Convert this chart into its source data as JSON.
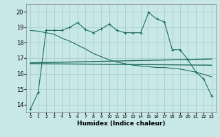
{
  "xlabel": "Humidex (Indice chaleur)",
  "background_color": "#c8e8e8",
  "line_color": "#1a6b5a",
  "xlim": [
    -0.5,
    23.5
  ],
  "ylim": [
    13.5,
    20.5
  ],
  "yticks": [
    14,
    15,
    16,
    17,
    18,
    19,
    20
  ],
  "xtick_labels": [
    "0",
    "1",
    "2",
    "3",
    "4",
    "5",
    "6",
    "7",
    "8",
    "9",
    "10",
    "11",
    "12",
    "13",
    "14",
    "15",
    "16",
    "17",
    "18",
    "19",
    "20",
    "21",
    "22",
    "23"
  ],
  "curve1_x": [
    0,
    1,
    2,
    3,
    4,
    5,
    6,
    7,
    8,
    9,
    10,
    11,
    12,
    13,
    14,
    15,
    16,
    17,
    18,
    19,
    20,
    21,
    22,
    23
  ],
  "curve1_y": [
    13.7,
    14.8,
    18.8,
    18.8,
    18.8,
    19.0,
    19.3,
    18.85,
    18.65,
    18.9,
    19.2,
    18.8,
    18.65,
    18.65,
    18.65,
    19.95,
    19.55,
    19.35,
    17.55,
    17.55,
    16.9,
    16.1,
    15.65,
    14.55
  ],
  "curve2_x": [
    0,
    1,
    2,
    3,
    4,
    5,
    6,
    7,
    8,
    9,
    10,
    11,
    12,
    13,
    14,
    15,
    16,
    17,
    18,
    19,
    20,
    21,
    22,
    23
  ],
  "curve2_y": [
    18.8,
    18.75,
    18.65,
    18.55,
    18.3,
    18.1,
    17.85,
    17.6,
    17.3,
    17.1,
    16.9,
    16.75,
    16.65,
    16.55,
    16.5,
    16.45,
    16.4,
    16.4,
    16.35,
    16.3,
    16.2,
    16.1,
    15.95,
    15.8
  ],
  "line1_x": [
    0,
    23
  ],
  "line1_y": [
    16.7,
    16.95
  ],
  "line2_x": [
    0,
    23
  ],
  "line2_y": [
    16.65,
    16.55
  ]
}
